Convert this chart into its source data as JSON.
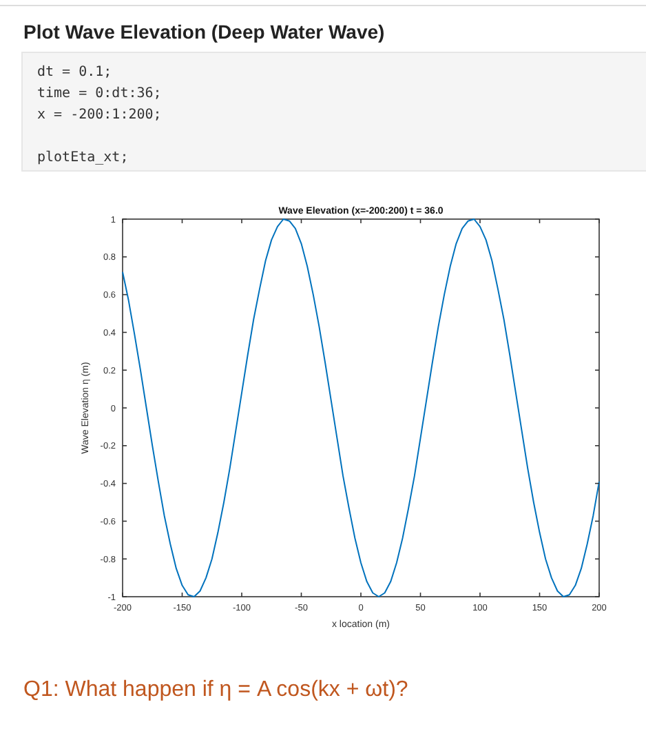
{
  "chart_data": {
    "type": "line",
    "title": "Wave Elevation (x=-200:200) t = 36.0",
    "xlabel": "x location (m)",
    "ylabel": "Wave Elevation η (m)",
    "annotations": [
      "Plot Wave Elevation (Deep Water Wave)",
      "dt = 0.1;",
      "time = 0:dt:36;",
      "x = -200:1:200;",
      "plotEta_xt;",
      "Q1: What happen if η = A cos(kx + ωt)?"
    ],
    "x": [
      -200,
      -195,
      -190,
      -185,
      -180,
      -175,
      -170,
      -165,
      -160,
      -155,
      -150,
      -145,
      -140,
      -135,
      -130,
      -125,
      -120,
      -115,
      -110,
      -105,
      -100,
      -95,
      -90,
      -85,
      -80,
      -75,
      -70,
      -65,
      -60,
      -55,
      -50,
      -45,
      -40,
      -35,
      -30,
      -25,
      -20,
      -15,
      -10,
      -5,
      0,
      5,
      10,
      15,
      20,
      25,
      30,
      35,
      40,
      45,
      50,
      55,
      60,
      65,
      70,
      75,
      80,
      85,
      90,
      95,
      100,
      105,
      110,
      115,
      120,
      125,
      130,
      135,
      140,
      145,
      150,
      155,
      160,
      165,
      170,
      175,
      180,
      185,
      190,
      195,
      200
    ],
    "series": [
      {
        "color": "#0072bd",
        "values": [
          0.72,
          0.57,
          0.39,
          0.2,
          0,
          -0.2,
          -0.39,
          -0.57,
          -0.72,
          -0.85,
          -0.94,
          -0.99,
          -1,
          -0.97,
          -0.9,
          -0.8,
          -0.66,
          -0.5,
          -0.32,
          -0.12,
          0.08,
          0.28,
          0.47,
          0.63,
          0.78,
          0.89,
          0.96,
          1,
          0.99,
          0.95,
          0.87,
          0.75,
          0.6,
          0.43,
          0.24,
          0.04,
          -0.16,
          -0.36,
          -0.53,
          -0.69,
          -0.82,
          -0.92,
          -0.98,
          -1,
          -0.98,
          -0.92,
          -0.82,
          -0.69,
          -0.53,
          -0.36,
          -0.16,
          0.04,
          0.24,
          0.43,
          0.6,
          0.75,
          0.87,
          0.95,
          0.99,
          1,
          0.96,
          0.89,
          0.78,
          0.63,
          0.47,
          0.28,
          0.08,
          -0.12,
          -0.32,
          -0.5,
          -0.66,
          -0.8,
          -0.9,
          -0.97,
          -1,
          -0.99,
          -0.94,
          -0.85,
          -0.72,
          -0.57,
          -0.39
        ]
      }
    ],
    "xlim": [
      -200,
      200
    ],
    "ylim": [
      -1,
      1
    ],
    "xticks": [
      -200,
      -150,
      -100,
      -50,
      0,
      50,
      100,
      150,
      200
    ],
    "yticks": [
      -1,
      -0.8,
      -0.6,
      -0.4,
      -0.2,
      0,
      0.2,
      0.4,
      0.6,
      0.8,
      1
    ],
    "grid": false,
    "marker": "none",
    "line_style": "solid"
  }
}
